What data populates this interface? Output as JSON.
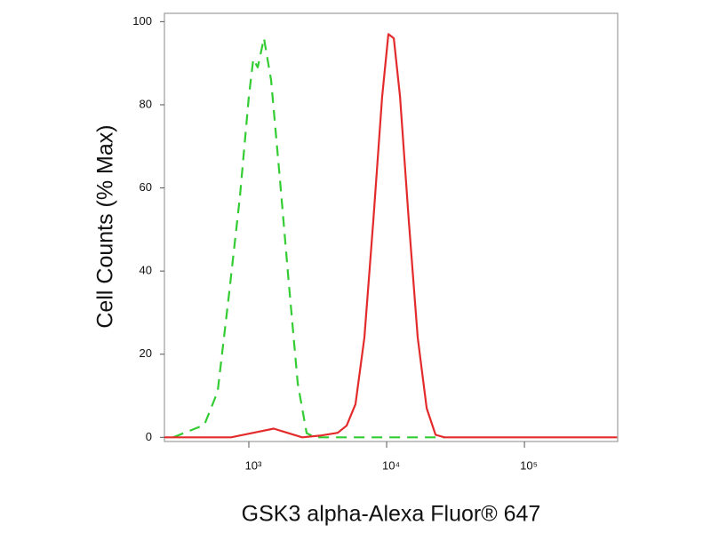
{
  "chart_data": {
    "type": "line",
    "xlabel": "GSK3 alpha-Alexa Fluor® 647",
    "ylabel": "Cell Counts (% Max)",
    "xscale": "log",
    "xlim": [
      244,
      475000
    ],
    "ylim": [
      -1,
      102
    ],
    "xticks": [
      {
        "value": 1000,
        "label": "10³"
      },
      {
        "value": 10000,
        "label": "10⁴"
      },
      {
        "value": 100000,
        "label": "10⁵"
      }
    ],
    "yticks": [
      0,
      20,
      40,
      60,
      80,
      100
    ],
    "series": [
      {
        "color": "#33cc33",
        "dashed": true,
        "x": [
          283,
          475,
          594,
          721,
          862,
          1000,
          1077,
          1160,
          1287,
          1450,
          1682,
          1952,
          2264,
          2626,
          3048,
          5943,
          26280
        ],
        "values": [
          0,
          3,
          11,
          35,
          58,
          82,
          91,
          89,
          96,
          86,
          62,
          37,
          13,
          1,
          0,
          0,
          0
        ]
      },
      {
        "color": "#e32b2b",
        "dashed": false,
        "x": [
          244,
          743,
          1160,
          1516,
          1811,
          2438,
          3281,
          4416,
          5126,
          5943,
          6898,
          8000,
          9284,
          10300,
          11270,
          12500,
          14490,
          16820,
          19520,
          22640,
          26280,
          470000
        ],
        "values": [
          0,
          0,
          1.3,
          2.1,
          1.3,
          0,
          0.4,
          1.1,
          2.8,
          8,
          24,
          52,
          82,
          97,
          96,
          82,
          52,
          24,
          7,
          0.6,
          0,
          0
        ]
      }
    ]
  }
}
